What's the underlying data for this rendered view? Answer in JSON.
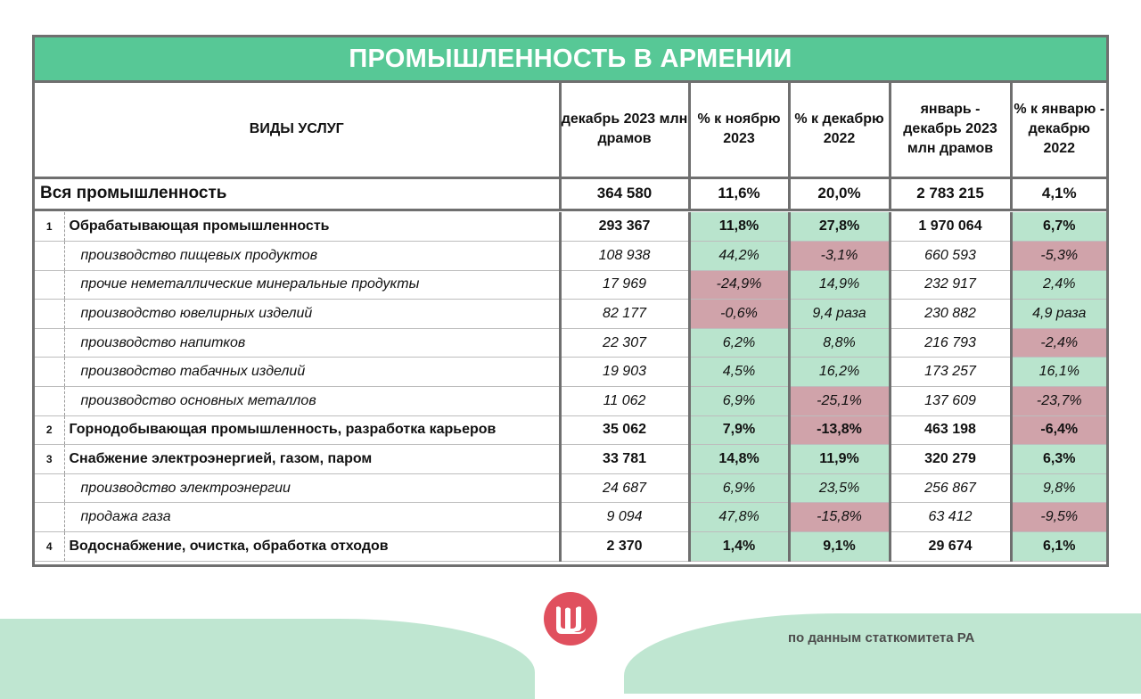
{
  "title": "ПРОМЫШЛЕННОСТЬ В АРМЕНИИ",
  "headers": {
    "col1": "ВИДЫ УСЛУГ",
    "col2": "декабрь 2023 млн драмов",
    "col3": "% к ноябрю 2023",
    "col4": "% к декабрю 2022",
    "col5": "январь - декабрь 2023 млн драмов",
    "col6": "% к январю - декабрю 2022"
  },
  "total": {
    "name": "Вся промышленность",
    "dec2023": "364 580",
    "vs_nov": "11,6%",
    "vs_dec2022": "20,0%",
    "jan_dec2023": "2 783 215",
    "vs_jan_dec2022": "4,1%"
  },
  "rows": [
    {
      "num": "1",
      "name": "Обрабатывающая промышленность",
      "dec2023": "293 367",
      "vs_nov": "11,8%",
      "vs_dec2022": "27,8%",
      "jan_dec2023": "1 970 064",
      "vs_jan_dec2022": "6,7%"
    },
    {
      "num": "",
      "name": "производство пищевых продуктов",
      "dec2023": "108 938",
      "vs_nov": "44,2%",
      "vs_dec2022": "-3,1%",
      "jan_dec2023": "660 593",
      "vs_jan_dec2022": "-5,3%"
    },
    {
      "num": "",
      "name": "прочие неметаллические минеральные продукты",
      "dec2023": "17 969",
      "vs_nov": "-24,9%",
      "vs_dec2022": "14,9%",
      "jan_dec2023": "232 917",
      "vs_jan_dec2022": "2,4%"
    },
    {
      "num": "",
      "name": "производство ювелирных изделий",
      "dec2023": "82 177",
      "vs_nov": "-0,6%",
      "vs_dec2022": "9,4 раза",
      "jan_dec2023": "230 882",
      "vs_jan_dec2022": "4,9 раза"
    },
    {
      "num": "",
      "name": "производство напитков",
      "dec2023": "22 307",
      "vs_nov": "6,2%",
      "vs_dec2022": "8,8%",
      "jan_dec2023": "216 793",
      "vs_jan_dec2022": "-2,4%"
    },
    {
      "num": "",
      "name": "производство табачных изделий",
      "dec2023": "19 903",
      "vs_nov": "4,5%",
      "vs_dec2022": "16,2%",
      "jan_dec2023": "173 257",
      "vs_jan_dec2022": "16,1%"
    },
    {
      "num": "",
      "name": "производство основных металлов",
      "dec2023": "11 062",
      "vs_nov": "6,9%",
      "vs_dec2022": "-25,1%",
      "jan_dec2023": "137 609",
      "vs_jan_dec2022": "-23,7%"
    },
    {
      "num": "2",
      "name": "Горнодобывающая промышленность, разработка карьеров",
      "dec2023": "35 062",
      "vs_nov": "7,9%",
      "vs_dec2022": "-13,8%",
      "jan_dec2023": "463 198",
      "vs_jan_dec2022": "-6,4%"
    },
    {
      "num": "3",
      "name": "Снабжение электроэнергией, газом, паром",
      "dec2023": "33 781",
      "vs_nov": "14,8%",
      "vs_dec2022": "11,9%",
      "jan_dec2023": "320 279",
      "vs_jan_dec2022": "6,3%"
    },
    {
      "num": "",
      "name": "производство электроэнергии",
      "dec2023": "24 687",
      "vs_nov": "6,9%",
      "vs_dec2022": "23,5%",
      "jan_dec2023": "256 867",
      "vs_jan_dec2022": "9,8%"
    },
    {
      "num": "",
      "name": "продажа газа",
      "dec2023": "9 094",
      "vs_nov": "47,8%",
      "vs_dec2022": "-15,8%",
      "jan_dec2023": "63 412",
      "vs_jan_dec2022": "-9,5%"
    },
    {
      "num": "4",
      "name": "Водоснабжение, очистка, обработка отходов",
      "dec2023": "2 370",
      "vs_nov": "1,4%",
      "vs_dec2022": "9,1%",
      "jan_dec2023": "29 674",
      "vs_jan_dec2022": "6,1%"
    }
  ],
  "colors": {
    "title_bg": "#57c896",
    "positive_cell": "#b9e4cd",
    "negative_cell": "#d0a3aa",
    "footer_wave": "#bfe6d1",
    "logo_bg": "#e0505e"
  },
  "logo_icon": "shch-letter-logo-icon",
  "source": "по данным статкомитета РА"
}
